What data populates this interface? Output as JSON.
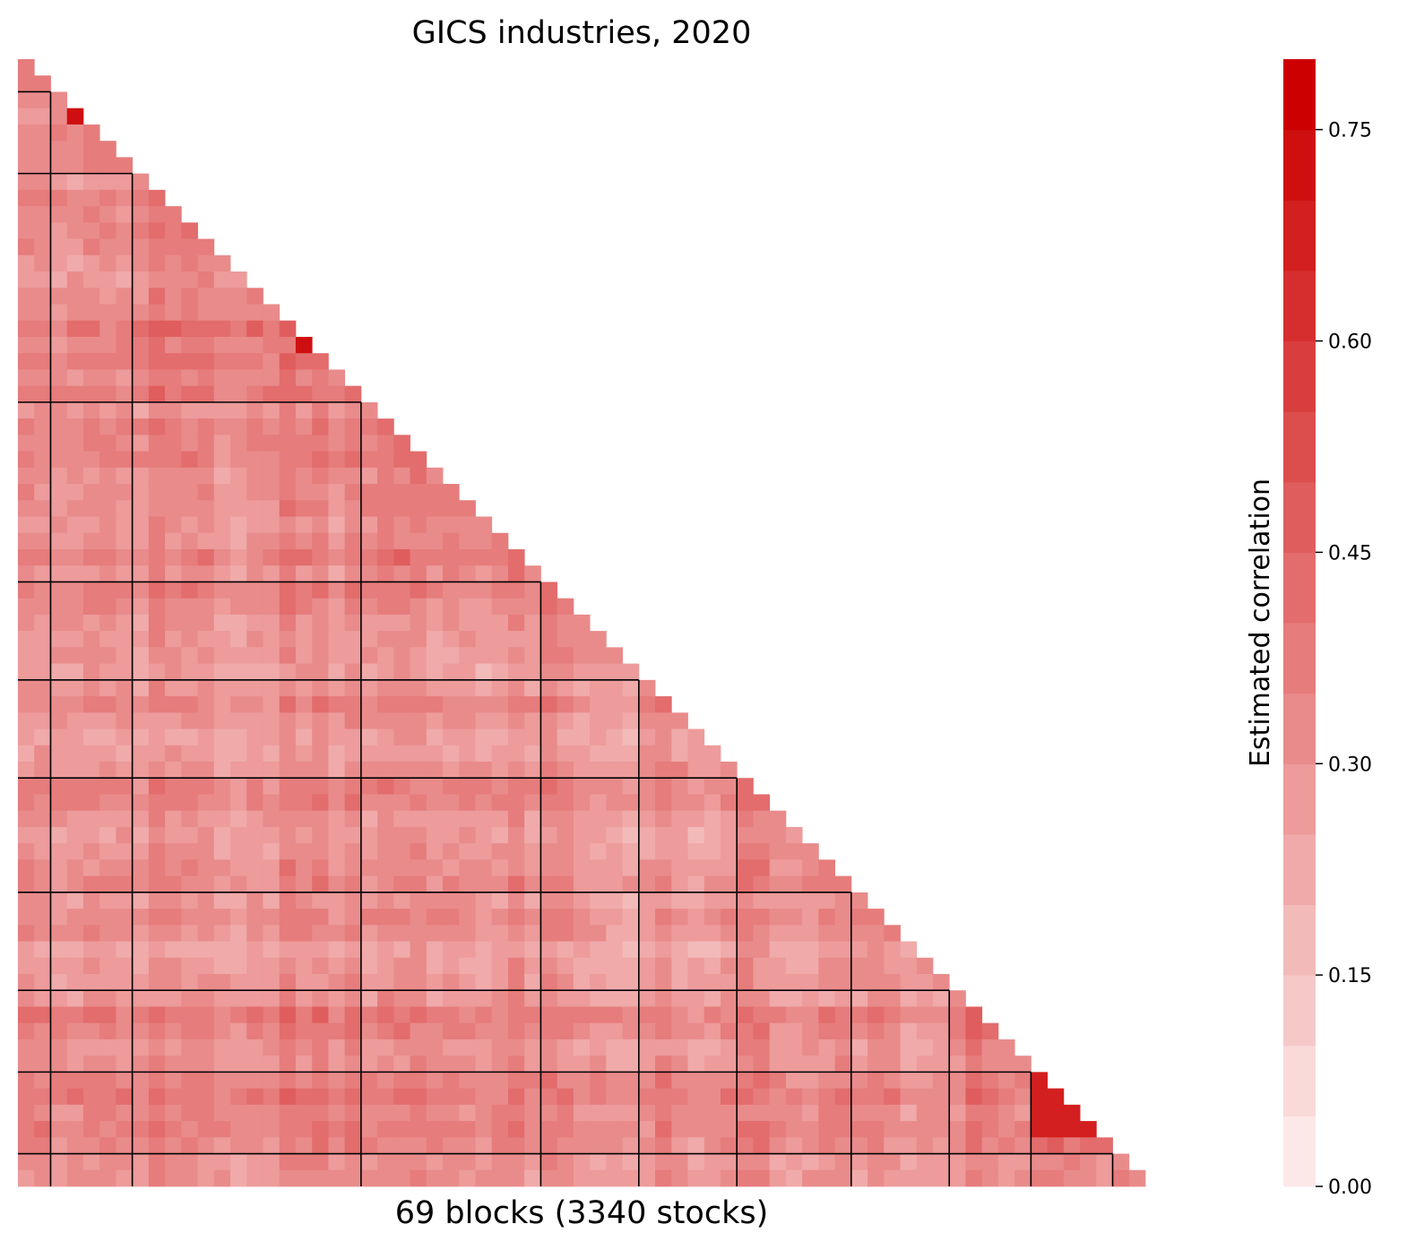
{
  "chart_data": {
    "type": "heatmap",
    "title": "GICS industries, 2020",
    "xlabel": "69 blocks (3340 stocks)",
    "ylabel": "",
    "matrix_shape": "lower-triangular",
    "block_count": 69,
    "group_boundaries": [
      2,
      7,
      21,
      32,
      38,
      44,
      51,
      57,
      62,
      67
    ],
    "colorbar": {
      "label": "Estimated correlation",
      "range": [
        0,
        0.8
      ],
      "levels": 16,
      "ticks": [
        0.0,
        0.15,
        0.3,
        0.45,
        0.6,
        0.75
      ],
      "tick_labels": [
        "0.00",
        "0.15",
        "0.30",
        "0.45",
        "0.60",
        "0.75"
      ],
      "colors": {
        "low": "#fde8e8",
        "high": "#cc0000"
      }
    },
    "grid": false,
    "legend": "right"
  }
}
